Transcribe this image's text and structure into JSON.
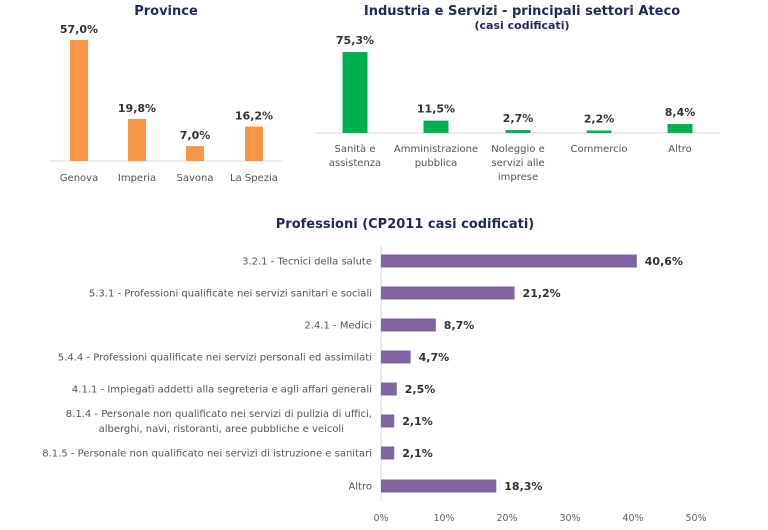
{
  "chart_data": [
    {
      "type": "bar",
      "title": "Province",
      "categories": [
        "Genova",
        "Imperia",
        "Savona",
        "La Spezia"
      ],
      "values": [
        57.0,
        19.8,
        7.0,
        16.2
      ],
      "value_labels": [
        "57,0%",
        "19,8%",
        "7,0%",
        "16,2%"
      ],
      "color": "#f79646",
      "grid": false
    },
    {
      "type": "bar",
      "title": "Industria e Servizi - principali settori Ateco",
      "subtitle": "(casi codificati)",
      "categories": [
        [
          "Sanità e",
          "assistenza"
        ],
        [
          "Amministrazione",
          "pubblica"
        ],
        [
          "Noleggio e",
          "servizi alle",
          "imprese"
        ],
        [
          "Commercio"
        ],
        [
          "Altro"
        ]
      ],
      "values": [
        75.3,
        11.5,
        2.7,
        2.2,
        8.4
      ],
      "value_labels": [
        "75,3%",
        "11,5%",
        "2,7%",
        "2,2%",
        "8,4%"
      ],
      "color": "#00b050",
      "grid": false
    },
    {
      "type": "bar",
      "orientation": "horizontal",
      "title": "Professioni (CP2011 casi codificati)",
      "categories": [
        [
          "3.2.1 - Tecnici della salute"
        ],
        [
          "5.3.1 - Professioni qualificate nei servizi sanitari e sociali"
        ],
        [
          "2.4.1 - Medici"
        ],
        [
          "5.4.4 - Professioni qualificate nei servizi personali ed assimilati"
        ],
        [
          "4.1.1 - Impiegati addetti alla segreteria e agli affari generali"
        ],
        [
          "8.1.4 - Personale non qualificato nei servizi di pulizia di uffici,",
          "alberghi, navi, ristoranti, aree pubbliche e veicoli"
        ],
        [
          "8.1.5 - Personale non qualificato nei servizi di istruzione e sanitari"
        ],
        [
          "Altro"
        ]
      ],
      "values": [
        40.6,
        21.2,
        8.7,
        4.7,
        2.5,
        2.1,
        2.1,
        18.3
      ],
      "value_labels": [
        "40,6%",
        "21,2%",
        "8,7%",
        "4,7%",
        "2,5%",
        "2,1%",
        "2,1%",
        "18,3%"
      ],
      "xlim": [
        0,
        50
      ],
      "x_ticks": [
        "0%",
        "10%",
        "20%",
        "30%",
        "40%",
        "50%"
      ],
      "color": "#8064a2",
      "grid": false
    }
  ]
}
